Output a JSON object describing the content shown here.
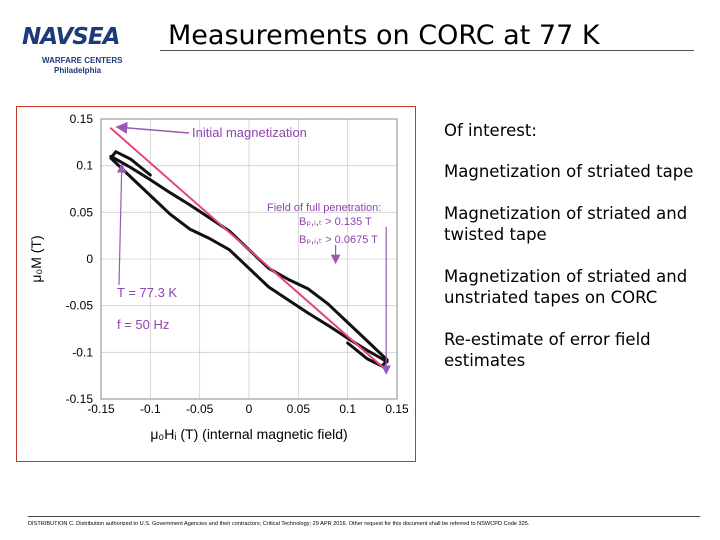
{
  "header": {
    "logo_word": "NAVSEA",
    "logo_line1": "WARFARE CENTERS",
    "logo_line2": "Philadelphia",
    "title": "Measurements on CORC at 77 K"
  },
  "notes": [
    "Of interest:",
    "Magnetization of striated tape",
    "Magnetization of striated and twisted tape",
    "Magnetization of striated and unstriated tapes on CORC",
    "Re-estimate of error field estimates"
  ],
  "footer": {
    "text": "DISTRIBUTION C. Distribution authorized to U.S. Government Agencies and their contractors; Critical Technology; 29 APR 2016. Other request for this document shall be referred to NSWCPD Code 325."
  },
  "chart_data": {
    "type": "line",
    "xlabel": "μ₀Hᵢ (T) (internal magnetic field)",
    "ylabel": "μ₀M (T)",
    "xlim": [
      -0.15,
      0.15
    ],
    "ylim": [
      -0.15,
      0.15
    ],
    "x_ticks": [
      "-0.15",
      "-0.1",
      "-0.05",
      "0",
      "0.05",
      "0.1",
      "0.15"
    ],
    "y_ticks": [
      "0.15",
      "0.1",
      "0.05",
      "0",
      "-0.05",
      "-0.1",
      "-0.15"
    ],
    "grid": true,
    "colors": {
      "loop": "#111111",
      "initial_magnetization": "#e8457a",
      "annotation": "#9b59b6",
      "annotation_text": "#8e44ad",
      "frame": "#c0392b"
    },
    "series": [
      {
        "name": "",
        "x": [
          0.14,
          0.12,
          0.1,
          0.08,
          0.06,
          0.04,
          0.02,
          0.0,
          -0.02,
          -0.04,
          -0.06,
          -0.08,
          -0.1,
          -0.12,
          -0.14,
          -0.135,
          -0.12,
          -0.1
        ],
        "y": [
          -0.11,
          -0.098,
          -0.085,
          -0.071,
          -0.058,
          -0.044,
          -0.03,
          -0.01,
          0.01,
          0.022,
          0.032,
          0.048,
          0.068,
          0.088,
          0.108,
          0.115,
          0.107,
          0.09
        ]
      },
      {
        "name": "",
        "x": [
          -0.14,
          -0.12,
          -0.1,
          -0.08,
          -0.06,
          -0.04,
          -0.02,
          0.0,
          0.02,
          0.04,
          0.06,
          0.08,
          0.1,
          0.12,
          0.14,
          0.135,
          0.12,
          0.1
        ],
        "y": [
          0.11,
          0.098,
          0.085,
          0.071,
          0.058,
          0.044,
          0.03,
          0.01,
          -0.01,
          -0.022,
          -0.032,
          -0.048,
          -0.068,
          -0.088,
          -0.108,
          -0.115,
          -0.107,
          -0.09
        ]
      },
      {
        "name": "",
        "x": [
          -0.14,
          0.14
        ],
        "y": [
          0.14,
          -0.12
        ]
      }
    ],
    "annotations": {
      "initial": "Initial magnetization",
      "fp_title": "Field of full penetration:",
      "fp_line1": "Bₚ,ᵢ,ₜ > 0.135 T",
      "fp_line2": "Bₚ,ᵢ,ₜ > 0.0675 T",
      "temp": "T = 77.3 K",
      "freq": "f = 50 Hz",
      "initial_arrow_to": [
        -0.14,
        0.12
      ],
      "fp_line1_x": 0.135,
      "fp_line2_x": 0.0675,
      "fp_arrow_bottom_y": -0.125,
      "fp_arrow2_bottom_y": 0.0,
      "temp_arrow_to": [
        -0.135,
        0.11
      ]
    }
  }
}
